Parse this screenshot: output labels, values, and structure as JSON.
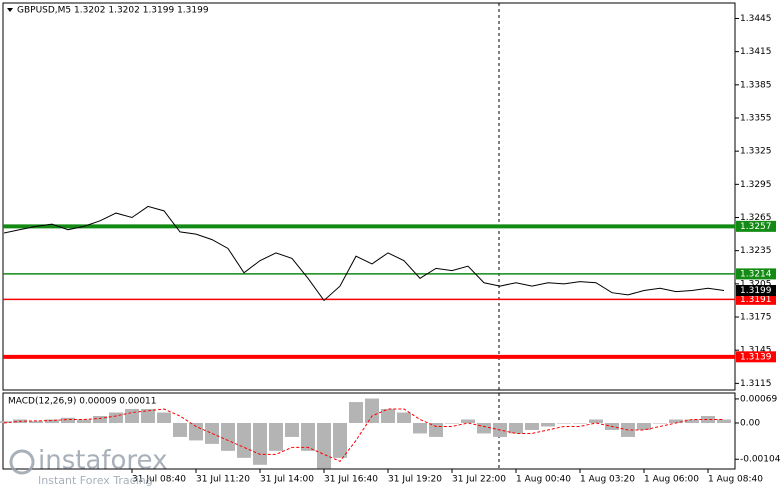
{
  "chart_data": [
    {
      "type": "line",
      "title": "GBPUSD,M5  1.3202 1.3202 1.3199 1.3199",
      "color": "#000000",
      "values": [
        1.3251,
        1.3254,
        1.3257,
        1.3259,
        1.3254,
        1.3257,
        1.3262,
        1.3269,
        1.3265,
        1.3275,
        1.3271,
        1.3252,
        1.325,
        1.3245,
        1.3237,
        1.3215,
        1.3226,
        1.3233,
        1.3228,
        1.321,
        1.319,
        1.3203,
        1.323,
        1.3223,
        1.3233,
        1.3226,
        1.321,
        1.3219,
        1.3217,
        1.3221,
        1.3206,
        1.3203,
        1.3206,
        1.3203,
        1.3206,
        1.3205,
        1.3207,
        1.3206,
        1.3197,
        1.3195,
        1.3199,
        1.3201,
        1.3198,
        1.3199,
        1.3201,
        1.3199
      ],
      "ylim": [
        1.3109,
        1.3459
      ],
      "yticks": [
        1.3115,
        1.3145,
        1.3175,
        1.3205,
        1.3235,
        1.3265,
        1.3295,
        1.3325,
        1.3355,
        1.3385,
        1.3415,
        1.3445
      ],
      "xticks": [
        {
          "value": 8,
          "label": "31 Jul 08:40"
        },
        {
          "value": 12,
          "label": "31 Jul 11:20"
        },
        {
          "value": 16,
          "label": "31 Jul 14:00"
        },
        {
          "value": 20,
          "label": "31 Jul 16:40"
        },
        {
          "value": 24,
          "label": "31 Jul 19:20"
        },
        {
          "value": 28,
          "label": "31 Jul 22:00"
        },
        {
          "value": 32,
          "label": "1 Aug 00:40"
        },
        {
          "value": 36,
          "label": "1 Aug 03:20"
        },
        {
          "value": 40,
          "label": "1 Aug 06:00"
        },
        {
          "value": 44,
          "label": "1 Aug 08:40"
        }
      ],
      "levels": [
        {
          "value": 1.3257,
          "color": "#138a13",
          "width": 4
        },
        {
          "value": 1.3214,
          "color": "#138a13",
          "width": 1.5
        },
        {
          "value": 1.3191,
          "color": "#ff0000",
          "width": 1.5
        },
        {
          "value": 1.3139,
          "color": "#ff0000",
          "width": 4
        }
      ]
    },
    {
      "type": "macd",
      "title": "MACD(12,26,9) 0.00009 0.00011",
      "color": "#b4b4b4",
      "signal_color": "#ff0000",
      "values": [
        5e-05,
        0.0001,
        5e-05,
        0.0001,
        0.00015,
        0.0001,
        0.0002,
        0.0003,
        0.0004,
        0.0004,
        0.0003,
        -0.0004,
        -0.0005,
        -0.0006,
        -0.0008,
        -0.001,
        -0.0012,
        -0.0008,
        -0.0004,
        -0.0008,
        -0.0013,
        -0.001,
        0.0006,
        0.0007,
        0.0004,
        0.0003,
        -0.0003,
        -0.0004,
        0,
        0.0001,
        -0.0003,
        -0.0004,
        -0.0003,
        -0.0002,
        -0.0001,
        0,
        0,
        0.0001,
        -0.0002,
        -0.0004,
        -0.0002,
        0,
        0.0001,
        0.0001,
        0.0002,
        0.0001
      ],
      "signal_values": [
        0,
        5e-05,
        6e-05,
        7e-05,
        0.0001,
        0.0001,
        0.00013,
        0.0002,
        0.0003,
        0.00035,
        0.0004,
        0.0002,
        -0.0001,
        -0.0003,
        -0.0005,
        -0.0007,
        -0.0009,
        -0.0009,
        -0.0007,
        -0.0007,
        -0.0009,
        -0.0011,
        -0.0005,
        0.0002,
        0.0004,
        0.0004,
        0.0001,
        -0.0001,
        -0.0001,
        0,
        -0.0001,
        -0.0002,
        -0.0003,
        -0.0003,
        -0.0002,
        -0.0001,
        -0.0001,
        0,
        -0.0001,
        -0.0002,
        -0.0002,
        -0.0001,
        0,
        0.0001,
        0.0001,
        0.0001
      ],
      "ylim": [
        -0.00132,
        0.00086
      ],
      "yticks": [
        -0.00104,
        {
          "value": 0,
          "label": "0.00"
        },
        0.00069
      ]
    }
  ],
  "watermark": {
    "brand": "instaforex",
    "tagline": "Instant Forex Tracing"
  }
}
